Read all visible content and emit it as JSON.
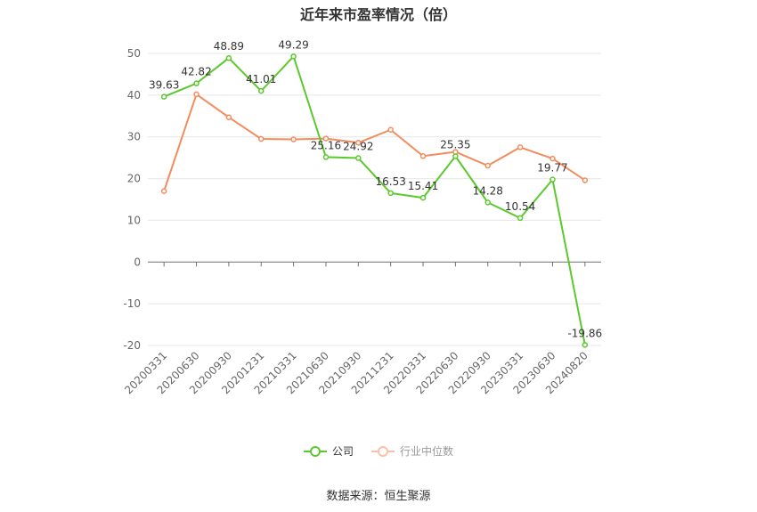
{
  "chart_data": {
    "type": "line",
    "title": "近年来市盈率情况（倍）",
    "categories": [
      "20200331",
      "20200630",
      "20200930",
      "20201231",
      "20210331",
      "20210630",
      "20210930",
      "20211231",
      "20220331",
      "20220630",
      "20220930",
      "20230331",
      "20230630",
      "20240820"
    ],
    "series": [
      {
        "name": "公司",
        "color": "#5bc92d",
        "values": [
          39.63,
          42.82,
          48.89,
          41.01,
          49.29,
          25.16,
          24.92,
          16.53,
          15.41,
          25.35,
          14.28,
          10.54,
          19.77,
          -19.86
        ],
        "labels": [
          "39.63",
          "42.82",
          "48.89",
          "41.01",
          "49.29",
          "25.16",
          "24.92",
          "16.53",
          "15.41",
          "25.35",
          "14.28",
          "10.54",
          "19.77",
          "-19.86"
        ]
      },
      {
        "name": "行业中位数",
        "color": "#f28c5e",
        "values": [
          17.0,
          40.2,
          34.7,
          29.5,
          29.4,
          29.6,
          28.6,
          31.7,
          25.4,
          26.4,
          23.1,
          27.5,
          24.8,
          19.6
        ]
      }
    ],
    "yticks": [
      50,
      40,
      30,
      20,
      10,
      0,
      -10,
      -20
    ],
    "ylim": [
      -20,
      50
    ],
    "grid": true,
    "legend_position": "bottom-center"
  },
  "footer": {
    "source": "数据来源：恒生聚源"
  }
}
